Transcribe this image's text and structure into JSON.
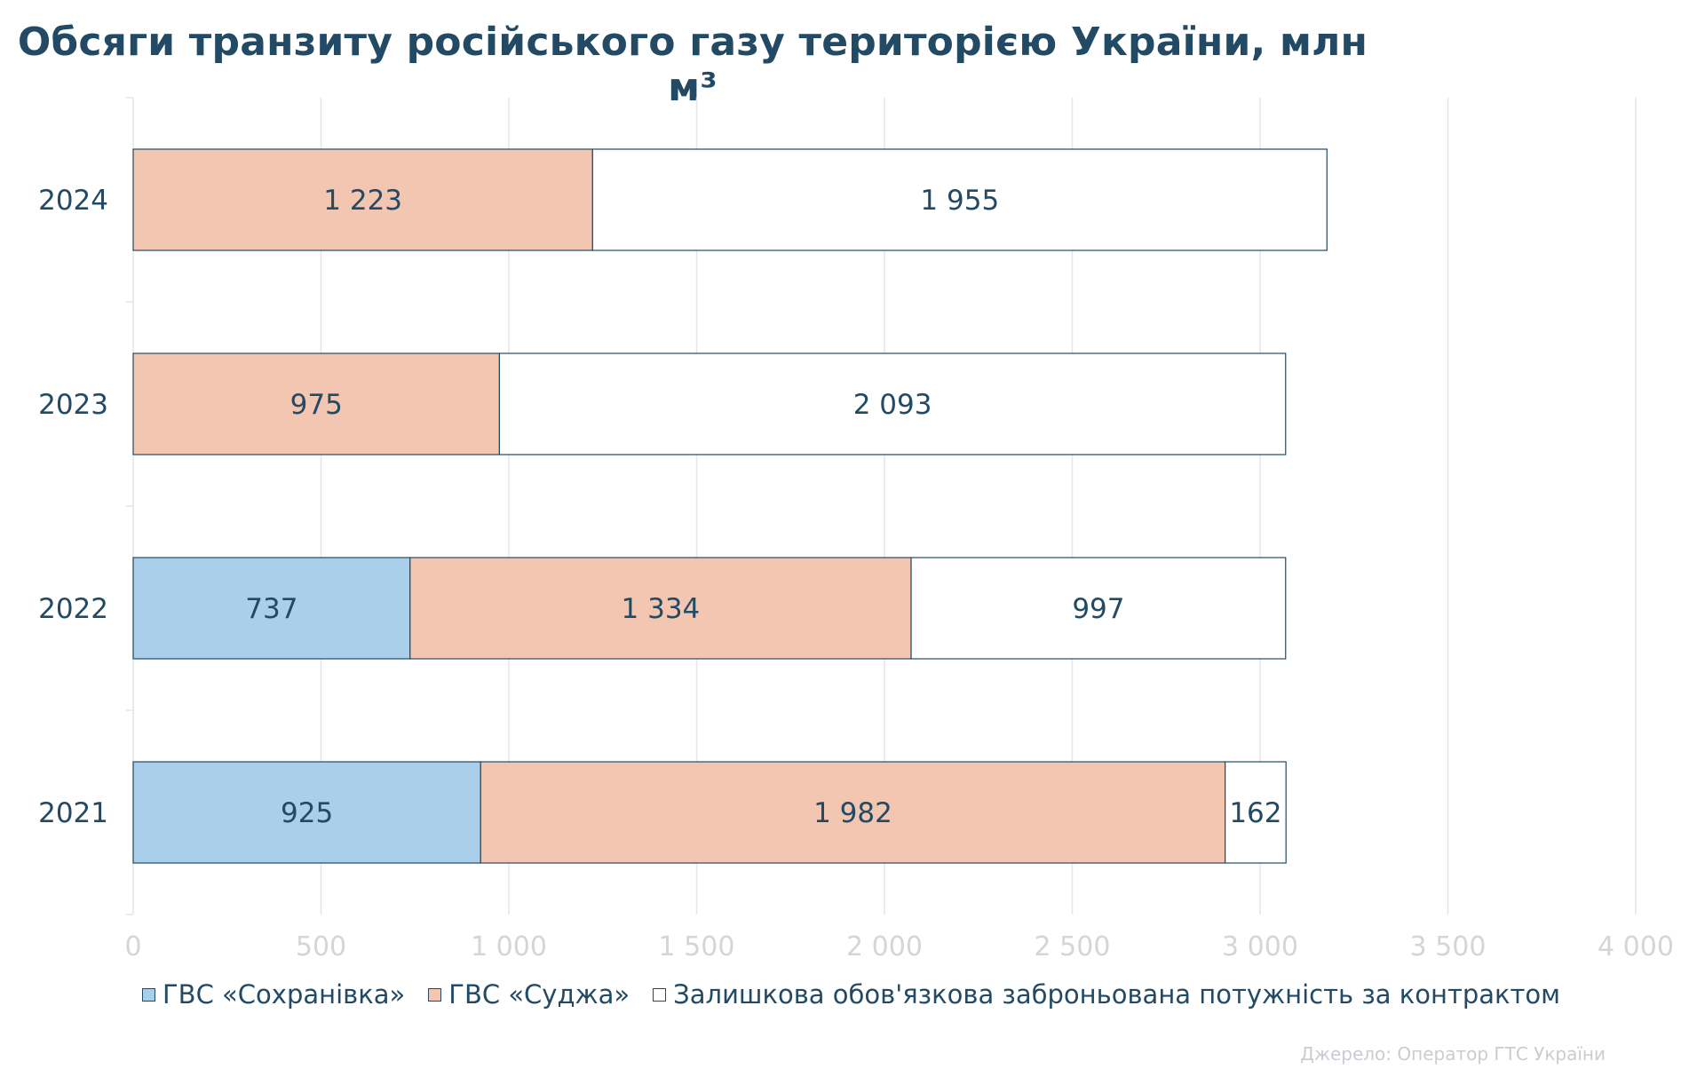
{
  "chart_data": {
    "type": "bar",
    "orientation": "horizontal",
    "stacked": true,
    "title": "Обсяги транзиту російського газу територією України, млн м³",
    "categories": [
      "2024",
      "2023",
      "2022",
      "2021"
    ],
    "series": [
      {
        "name": "ГВС «Сохранівка»",
        "color": "#a9cfea",
        "values": [
          0,
          0,
          737,
          925
        ],
        "labels": [
          "",
          "",
          "737",
          "925"
        ]
      },
      {
        "name": "ГВС «Суджа»",
        "color": "#f2c6b0",
        "values": [
          1223,
          975,
          1334,
          1982
        ],
        "labels": [
          "1 223",
          "975",
          "1 334",
          "1 982"
        ]
      },
      {
        "name": "Залишкова обов'язкова заброньована потужність за контрактом",
        "color": "#ffffff",
        "values": [
          1955,
          2093,
          997,
          162
        ],
        "labels": [
          "1 955",
          "2 093",
          "997",
          "162"
        ]
      }
    ],
    "xlim": [
      0,
      4000
    ],
    "xticks": [
      0,
      500,
      1000,
      1500,
      2000,
      2500,
      3000,
      3500,
      4000
    ],
    "xtick_labels": [
      "0",
      "500",
      "1 000",
      "1 500",
      "2 000",
      "2 500",
      "3 000",
      "3 500",
      "4 000"
    ],
    "grid": true,
    "legend": "bottom",
    "source": "Джерело: Оператор ГТС України",
    "colors": {
      "text": "#234a64",
      "outline": "#234a64",
      "grid": "#e6e6e6",
      "tick_label": "#d3d6d9"
    }
  }
}
